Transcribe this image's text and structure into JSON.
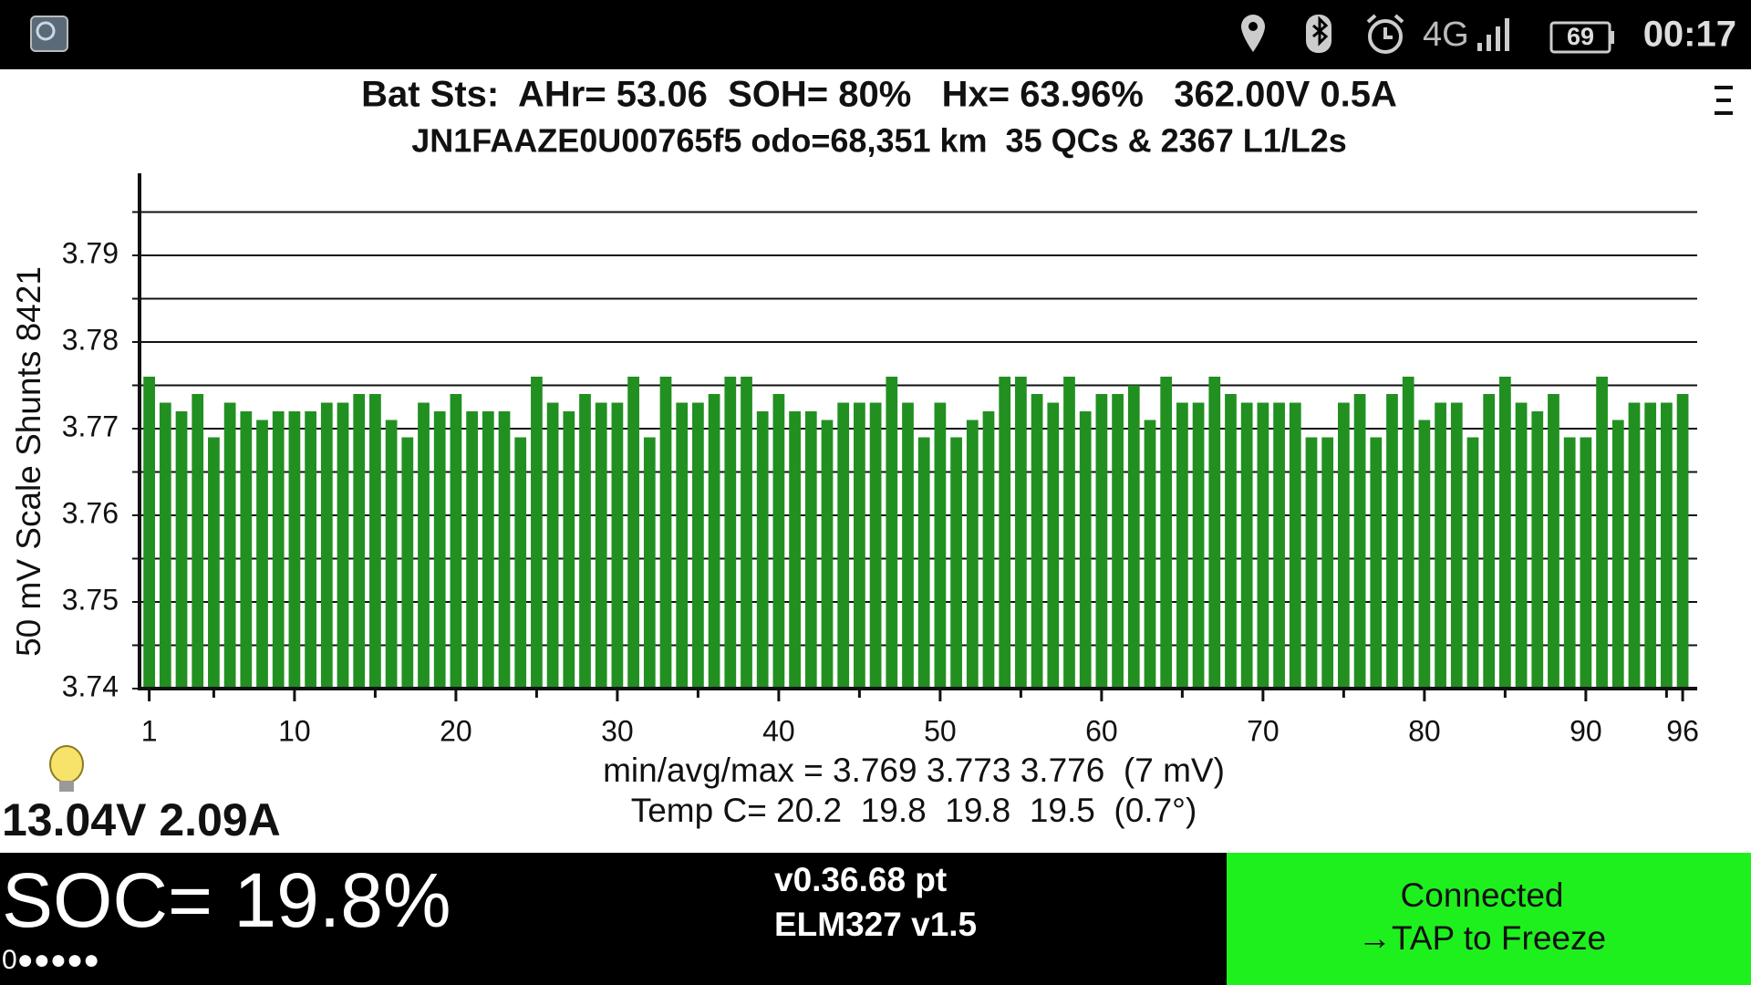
{
  "status_bar": {
    "network": "4G",
    "battery": "69",
    "time": "00:17"
  },
  "header": {
    "line1": "Bat Sts:  AHr= 53.06  SOH= 80%   Hx= 63.96%   362.00V 0.5A",
    "line2": "JN1FAAZE0U00765f5 odo=68,351 km  35 QCs & 2367 L1/L2s"
  },
  "chart_data": {
    "type": "bar",
    "y_label": "50 mV Scale   Shunts 8421",
    "x": [
      1,
      2,
      3,
      4,
      5,
      6,
      7,
      8,
      9,
      10,
      11,
      12,
      13,
      14,
      15,
      16,
      17,
      18,
      19,
      20,
      21,
      22,
      23,
      24,
      25,
      26,
      27,
      28,
      29,
      30,
      31,
      32,
      33,
      34,
      35,
      36,
      37,
      38,
      39,
      40,
      41,
      42,
      43,
      44,
      45,
      46,
      47,
      48,
      49,
      50,
      51,
      52,
      53,
      54,
      55,
      56,
      57,
      58,
      59,
      60,
      61,
      62,
      63,
      64,
      65,
      66,
      67,
      68,
      69,
      70,
      71,
      72,
      73,
      74,
      75,
      76,
      77,
      78,
      79,
      80,
      81,
      82,
      83,
      84,
      85,
      86,
      87,
      88,
      89,
      90,
      91,
      92,
      93,
      94,
      95,
      96
    ],
    "series": [
      {
        "color": "#219021",
        "values": [
          3.776,
          3.773,
          3.772,
          3.774,
          3.769,
          3.773,
          3.772,
          3.771,
          3.772,
          3.772,
          3.772,
          3.773,
          3.773,
          3.774,
          3.774,
          3.771,
          3.769,
          3.773,
          3.772,
          3.774,
          3.772,
          3.772,
          3.772,
          3.769,
          3.776,
          3.773,
          3.772,
          3.774,
          3.773,
          3.773,
          3.776,
          3.769,
          3.776,
          3.773,
          3.773,
          3.774,
          3.776,
          3.776,
          3.772,
          3.774,
          3.772,
          3.772,
          3.771,
          3.773,
          3.773,
          3.773,
          3.776,
          3.773,
          3.769,
          3.773,
          3.769,
          3.771,
          3.772,
          3.776,
          3.776,
          3.774,
          3.773,
          3.776,
          3.772,
          3.774,
          3.774,
          3.775,
          3.771,
          3.776,
          3.773,
          3.773,
          3.776,
          3.774,
          3.773,
          3.773,
          3.773,
          3.773,
          3.769,
          3.769,
          3.773,
          3.774,
          3.769,
          3.774,
          3.776,
          3.771,
          3.773,
          3.773,
          3.769,
          3.774,
          3.776,
          3.773,
          3.772,
          3.774,
          3.769,
          3.769,
          3.776,
          3.771,
          3.773,
          3.773,
          3.773,
          3.774
        ]
      }
    ],
    "xlim": [
      0.4,
      96.9
    ],
    "xticks": [
      1,
      10,
      20,
      30,
      40,
      50,
      60,
      70,
      80,
      90,
      96
    ],
    "minor_xticks": [
      5,
      15,
      25,
      35,
      45,
      55,
      65,
      75,
      85,
      95
    ],
    "ylim": [
      3.74,
      3.8
    ],
    "yticks": [
      3.74,
      3.75,
      3.76,
      3.77,
      3.78,
      3.79
    ],
    "minor_yticks": [
      3.745,
      3.755,
      3.765,
      3.775,
      3.785,
      3.795
    ],
    "grid": true
  },
  "stats": {
    "voltage_range": "min/avg/max = 3.769 3.773 3.776  (7 mV)",
    "temperature": "Temp C= 20.2  19.8  19.8  19.5  (0.7°)"
  },
  "aux_power": "13.04V 2.09A",
  "footer": {
    "soc": "SOC= 19.8%",
    "indicator": "0●●●●●",
    "version": "v0.36.68 pt",
    "adapter": "ELM327 v1.5",
    "status": "Connected",
    "action": "→TAP to Freeze"
  }
}
